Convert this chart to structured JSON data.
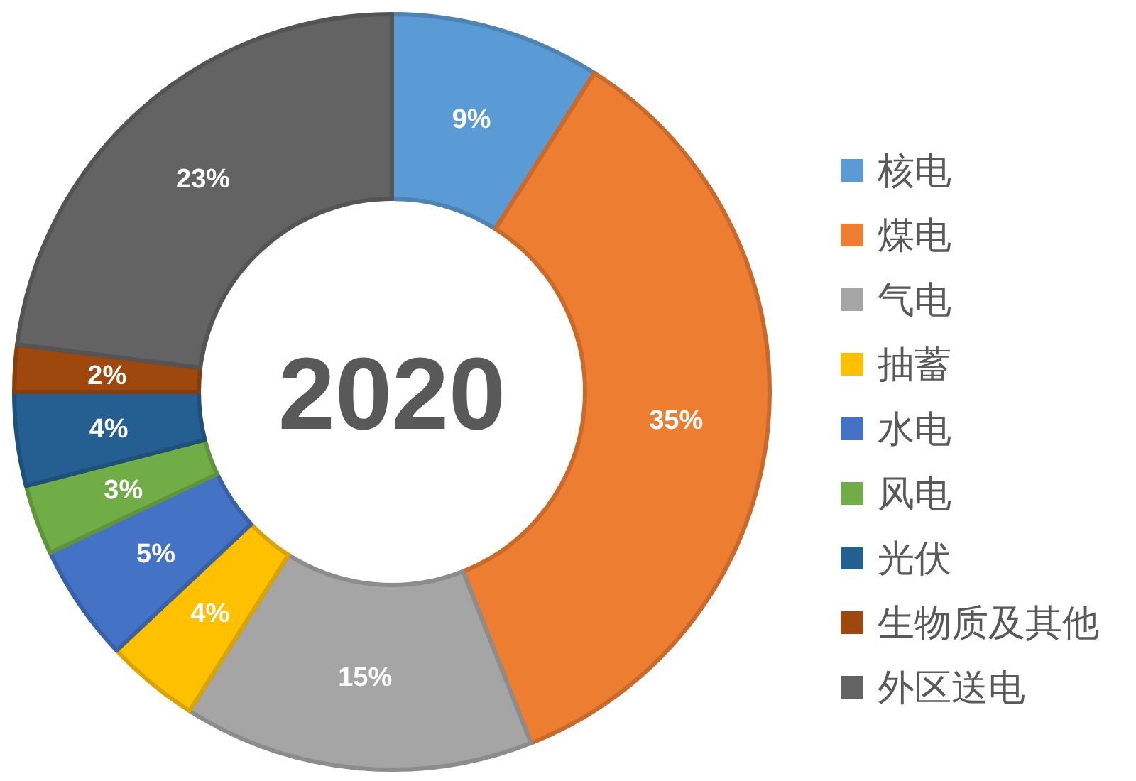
{
  "chart_data": {
    "type": "donut",
    "title": "2020",
    "categories": [
      "核电",
      "煤电",
      "气电",
      "抽蓄",
      "水电",
      "风电",
      "光伏",
      "生物质及其他",
      "外区送电"
    ],
    "values": [
      9,
      35,
      15,
      4,
      5,
      3,
      4,
      2,
      23
    ],
    "colors": [
      "#5b9bd5",
      "#ed7d31",
      "#a5a5a5",
      "#ffc000",
      "#4472c4",
      "#70ad47",
      "#255e91",
      "#9e480e",
      "#636363"
    ],
    "value_labels": [
      "9%",
      "35%",
      "15%",
      "4%",
      "5%",
      "3%",
      "4%",
      "2%",
      "23%"
    ],
    "legend": "right"
  }
}
